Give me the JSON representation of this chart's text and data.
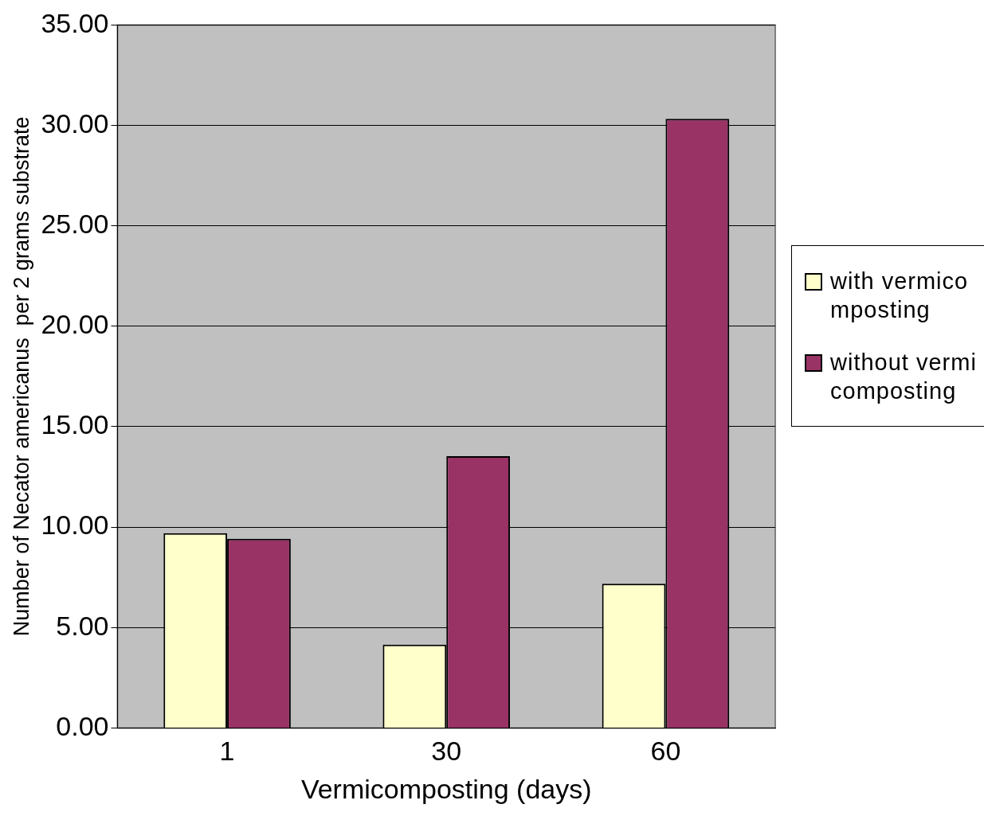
{
  "chart_data": {
    "type": "bar",
    "xlabel": "Vermicomposting (days)",
    "ylabel": "Number of Necator americanus  per 2 grams substrate",
    "categories": [
      "1",
      "30",
      "60"
    ],
    "series": [
      {
        "name": "with vermicomposting",
        "color": "#ffffcc",
        "values": [
          9.7,
          4.15,
          7.18
        ]
      },
      {
        "name": "without vermicomposting",
        "color": "#993366",
        "values": [
          9.42,
          13.53,
          30.33
        ]
      }
    ],
    "ylim": [
      0,
      35
    ],
    "yticks": [
      {
        "value": 0,
        "label": "0.00"
      },
      {
        "value": 5,
        "label": "5.00"
      },
      {
        "value": 10,
        "label": "10.00"
      },
      {
        "value": 15,
        "label": "15.00"
      },
      {
        "value": 20,
        "label": "20.00"
      },
      {
        "value": 25,
        "label": "25.00"
      },
      {
        "value": 30,
        "label": "30.00"
      },
      {
        "value": 35,
        "label": "35.00"
      }
    ],
    "grid": "y",
    "legend": "right"
  }
}
